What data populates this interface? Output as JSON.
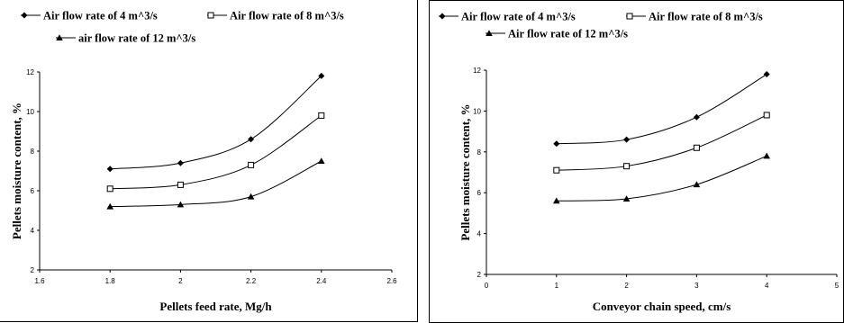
{
  "chart_data": [
    {
      "type": "line",
      "xlabel": "Pellets feed rate, Mg/h",
      "ylabel": "Pellets moisture content, %",
      "xlim": [
        1.6,
        2.6
      ],
      "ylim": [
        2,
        12
      ],
      "x_ticks": [
        "1.6",
        "1.8",
        "2",
        "2.2",
        "2.4",
        "2.6"
      ],
      "y_ticks": [
        "2",
        "4",
        "6",
        "8",
        "10",
        "12"
      ],
      "grid": false,
      "legend_position": "top",
      "x": [
        1.8,
        2.0,
        2.2,
        2.4
      ],
      "series": [
        {
          "name": "Air flow rate of 4 m^3/s",
          "marker": "diamond",
          "values": [
            7.1,
            7.4,
            8.6,
            11.8
          ]
        },
        {
          "name": "Air flow rate of 8 m^3/s",
          "marker": "square-open",
          "values": [
            6.1,
            6.3,
            7.3,
            9.8
          ]
        },
        {
          "name": "air flow rate of 12 m^3/s",
          "marker": "triangle",
          "values": [
            5.2,
            5.3,
            5.7,
            7.5
          ]
        }
      ]
    },
    {
      "type": "line",
      "xlabel": "Conveyor chain speed, cm/s",
      "ylabel": "Pellets moisture content, %",
      "xlim": [
        0,
        5
      ],
      "ylim": [
        2,
        12
      ],
      "x_ticks": [
        "0",
        "1",
        "2",
        "3",
        "4",
        "5"
      ],
      "y_ticks": [
        "2",
        "4",
        "6",
        "8",
        "10",
        "12"
      ],
      "grid": false,
      "legend_position": "top",
      "x": [
        1,
        2,
        3,
        4
      ],
      "series": [
        {
          "name": "Air flow rate of 4 m^3/s",
          "marker": "diamond",
          "values": [
            8.4,
            8.6,
            9.7,
            11.8
          ]
        },
        {
          "name": "Air flow rate of 8 m^3/s",
          "marker": "square-open",
          "values": [
            7.1,
            7.3,
            8.2,
            9.8
          ]
        },
        {
          "name": "Air flow rate of 12 m^3/s",
          "marker": "triangle",
          "values": [
            5.6,
            5.7,
            6.4,
            7.8
          ]
        }
      ]
    }
  ]
}
